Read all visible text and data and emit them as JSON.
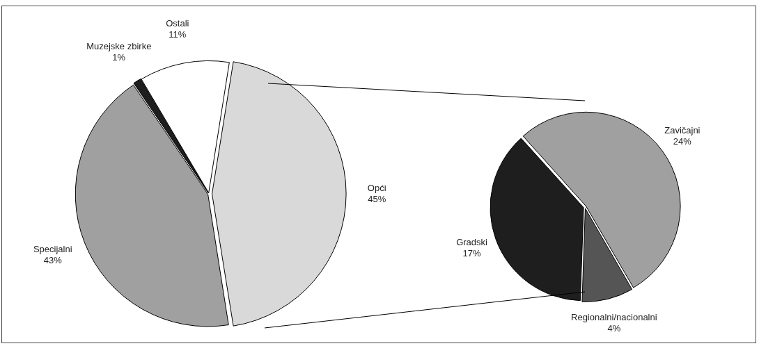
{
  "chart_data": [
    {
      "type": "pie",
      "categories": [
        "Opći",
        "Specijalni",
        "Muzejske zbirke",
        "Ostali"
      ],
      "values": [
        45,
        43,
        1,
        11
      ],
      "value_labels": [
        "45%",
        "43%",
        "1%",
        "11%"
      ],
      "colors": [
        "#d9d9d9",
        "#a0a0a0",
        "#1e1e1e",
        "#ffffff"
      ],
      "legend": false
    },
    {
      "type": "pie",
      "categories": [
        "Zavičajni",
        "Regionalni/nacionalni",
        "Gradski"
      ],
      "values": [
        24,
        4,
        17
      ],
      "value_labels": [
        "24%",
        "4%",
        "17%"
      ],
      "colors": [
        "#a0a0a0",
        "#555555",
        "#1e1e1e"
      ],
      "legend": false
    }
  ]
}
